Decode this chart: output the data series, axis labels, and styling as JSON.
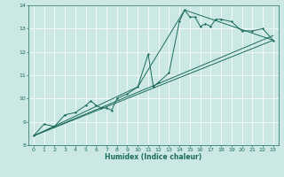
{
  "xlabel": "Humidex (Indice chaleur)",
  "ylabel": "",
  "xlim": [
    -0.5,
    23.5
  ],
  "ylim": [
    8,
    14
  ],
  "xticks": [
    0,
    1,
    2,
    3,
    4,
    5,
    6,
    7,
    8,
    9,
    10,
    11,
    12,
    13,
    14,
    15,
    16,
    17,
    18,
    19,
    20,
    21,
    22,
    23
  ],
  "yticks": [
    8,
    9,
    10,
    11,
    12,
    13,
    14
  ],
  "bg_color": "#cce8e5",
  "line_color": "#1a6b5a",
  "series": [
    [
      0,
      8.4
    ],
    [
      1,
      8.9
    ],
    [
      2,
      8.8
    ],
    [
      3,
      9.3
    ],
    [
      4,
      9.4
    ],
    [
      5,
      9.7
    ],
    [
      5.5,
      9.9
    ],
    [
      6,
      9.7
    ],
    [
      6.5,
      9.6
    ],
    [
      7,
      9.6
    ],
    [
      7.5,
      9.5
    ],
    [
      8,
      10.0
    ],
    [
      9,
      10.2
    ],
    [
      10,
      10.5
    ],
    [
      11,
      11.9
    ],
    [
      11.5,
      10.5
    ],
    [
      12,
      10.7
    ],
    [
      13,
      11.1
    ],
    [
      14,
      13.3
    ],
    [
      14.5,
      13.8
    ],
    [
      15,
      13.5
    ],
    [
      15.5,
      13.5
    ],
    [
      16,
      13.1
    ],
    [
      16.5,
      13.2
    ],
    [
      17,
      13.1
    ],
    [
      17.5,
      13.4
    ],
    [
      18,
      13.4
    ],
    [
      19,
      13.3
    ],
    [
      20,
      12.9
    ],
    [
      21,
      12.9
    ],
    [
      22,
      13.0
    ],
    [
      23,
      12.5
    ]
  ],
  "line2": [
    [
      0,
      8.4
    ],
    [
      23,
      12.5
    ]
  ],
  "line3": [
    [
      0,
      8.4
    ],
    [
      23,
      12.5
    ]
  ],
  "line4": [
    [
      0,
      8.4
    ],
    [
      10,
      10.5
    ],
    [
      14.5,
      13.8
    ],
    [
      23,
      12.5
    ]
  ]
}
